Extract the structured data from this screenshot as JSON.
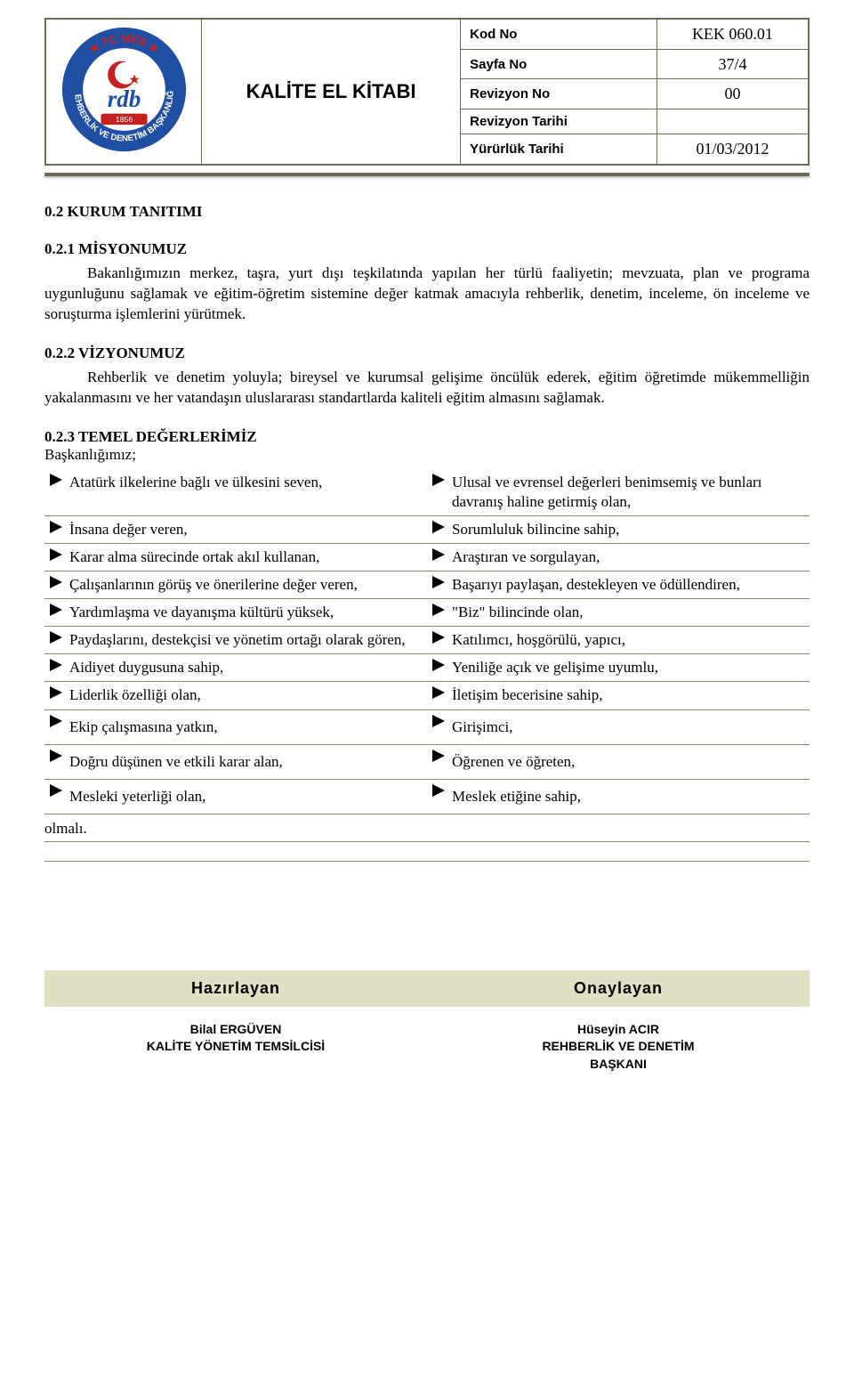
{
  "header": {
    "title": "KALİTE EL KİTABI",
    "rows": [
      {
        "label": "Kod No",
        "value": "KEK 060.01"
      },
      {
        "label": "Sayfa No",
        "value": "37/4"
      },
      {
        "label": "Revizyon No",
        "value": "00"
      },
      {
        "label": "Revizyon Tarihi",
        "value": ""
      },
      {
        "label": "Yürürlük Tarihi",
        "value": "01/03/2012"
      }
    ],
    "logo": {
      "outer_text_top": "TC MEB",
      "ring_color": "#1f4fa3",
      "ring_text_color": "#ffffff",
      "crescent_color": "#c62121",
      "inner_bg": "#ffffff"
    }
  },
  "sections": {
    "s1": {
      "heading": "0.2    KURUM TANITIMI"
    },
    "s2": {
      "heading": "0.2.1 MİSYONUMUZ",
      "body": "Bakanlığımızın merkez, taşra, yurt dışı teşkilatında yapılan her türlü faaliyetin; mevzuata, plan ve programa uygunluğunu sağlamak ve eğitim-öğretim sistemine değer katmak amacıyla rehberlik, denetim, inceleme, ön inceleme ve soruşturma işlemlerini yürütmek."
    },
    "s3": {
      "heading": "0.2.2 VİZYONUMUZ",
      "body": "Rehberlik ve denetim yoluyla; bireysel ve kurumsal gelişime öncülük ederek, eğitim öğretimde mükemmelliğin yakalanmasını ve her vatandaşın uluslararası standartlarda kaliteli eğitim almasını sağlamak."
    },
    "s4": {
      "heading": "0.2.3 TEMEL DEĞERLERİMİZ",
      "subline": "Başkanlığımız;",
      "rows": [
        {
          "left": "Atatürk ilkelerine bağlı ve ülkesini seven,",
          "right": "Ulusal ve evrensel değerleri benimsemiş ve bunları davranış haline getirmiş olan,"
        },
        {
          "left": "İnsana değer veren,",
          "right": "Sorumluluk bilincine sahip,"
        },
        {
          "left": "Karar alma sürecinde ortak akıl kullanan,",
          "right": "Araştıran ve sorgulayan,"
        },
        {
          "left": "Çalışanlarının görüş ve önerilerine değer veren,",
          "right": "Başarıyı paylaşan, destekleyen ve ödüllendiren,"
        },
        {
          "left": "Yardımlaşma ve dayanışma kültürü yüksek,",
          "right": "\"Biz\" bilincinde olan,"
        },
        {
          "left": "Paydaşlarını, destekçisi ve yönetim ortağı olarak gören,",
          "right": "Katılımcı, hoşgörülü, yapıcı,"
        },
        {
          "left": "Aidiyet duygusuna sahip,",
          "right": "Yeniliğe açık ve gelişime uyumlu,"
        },
        {
          "left": "Liderlik özelliği olan,",
          "right": "İletişim becerisine sahip,"
        },
        {
          "left": "Ekip çalışmasına yatkın,",
          "right": "Girişimci,"
        },
        {
          "left": "Doğru düşünen ve etkili karar alan,",
          "right": "Öğrenen ve öğreten,"
        },
        {
          "left": "Mesleki yeterliği olan,",
          "right": "Meslek etiğine sahip,"
        }
      ],
      "closing": "olmalı."
    }
  },
  "footer": {
    "left_heading": "Hazırlayan",
    "right_heading": "Onaylayan",
    "left_name": "Bilal ERGÜVEN",
    "left_title": "KALİTE YÖNETİM TEMSİLCİSİ",
    "right_name": "Hüseyin ACIR",
    "right_title_1": "REHBERLİK VE DENETİM",
    "right_title_2": "BAŞKANI"
  },
  "style": {
    "page_bg": "#ffffff",
    "rule_color": "#6c6955",
    "value_rule_color": "#8a886f",
    "footer_band_bg": "#e2e0c3",
    "arrow_color": "#000000"
  }
}
